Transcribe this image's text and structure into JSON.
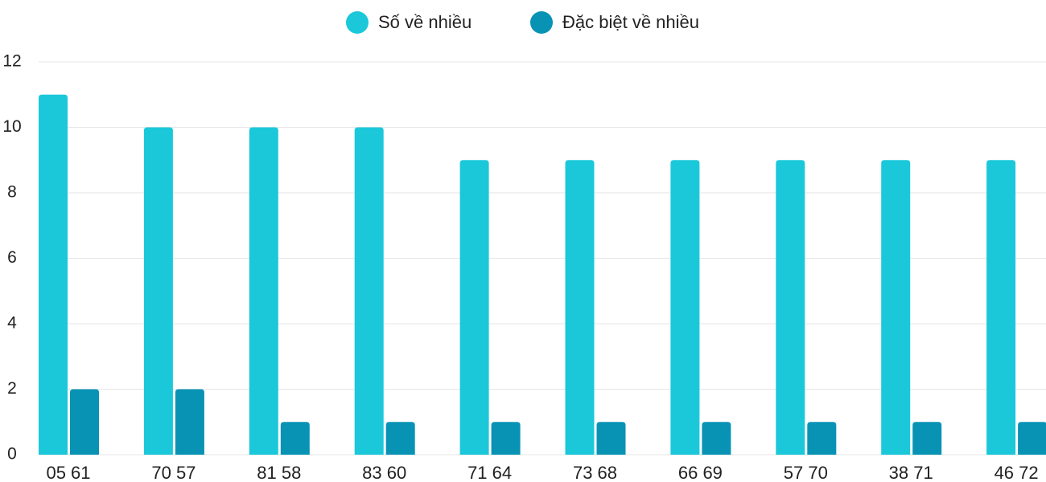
{
  "chart_data": {
    "type": "bar",
    "categories": [
      "05 61",
      "70 57",
      "81 58",
      "83 60",
      "71 64",
      "73 68",
      "66 69",
      "57 70",
      "38 71",
      "46 72"
    ],
    "series": [
      {
        "name": "Số về nhiều",
        "color": "#1bc8da",
        "values": [
          11,
          10,
          10,
          10,
          9,
          9,
          9,
          9,
          9,
          9
        ]
      },
      {
        "name": "Đặc biệt về nhiều",
        "color": "#0893b5",
        "values": [
          2,
          2,
          1,
          1,
          1,
          1,
          1,
          1,
          1,
          1
        ]
      }
    ],
    "ylim": [
      0,
      12
    ],
    "yticks": [
      0,
      2,
      4,
      6,
      8,
      10,
      12
    ],
    "grid": true,
    "legend": "top"
  }
}
